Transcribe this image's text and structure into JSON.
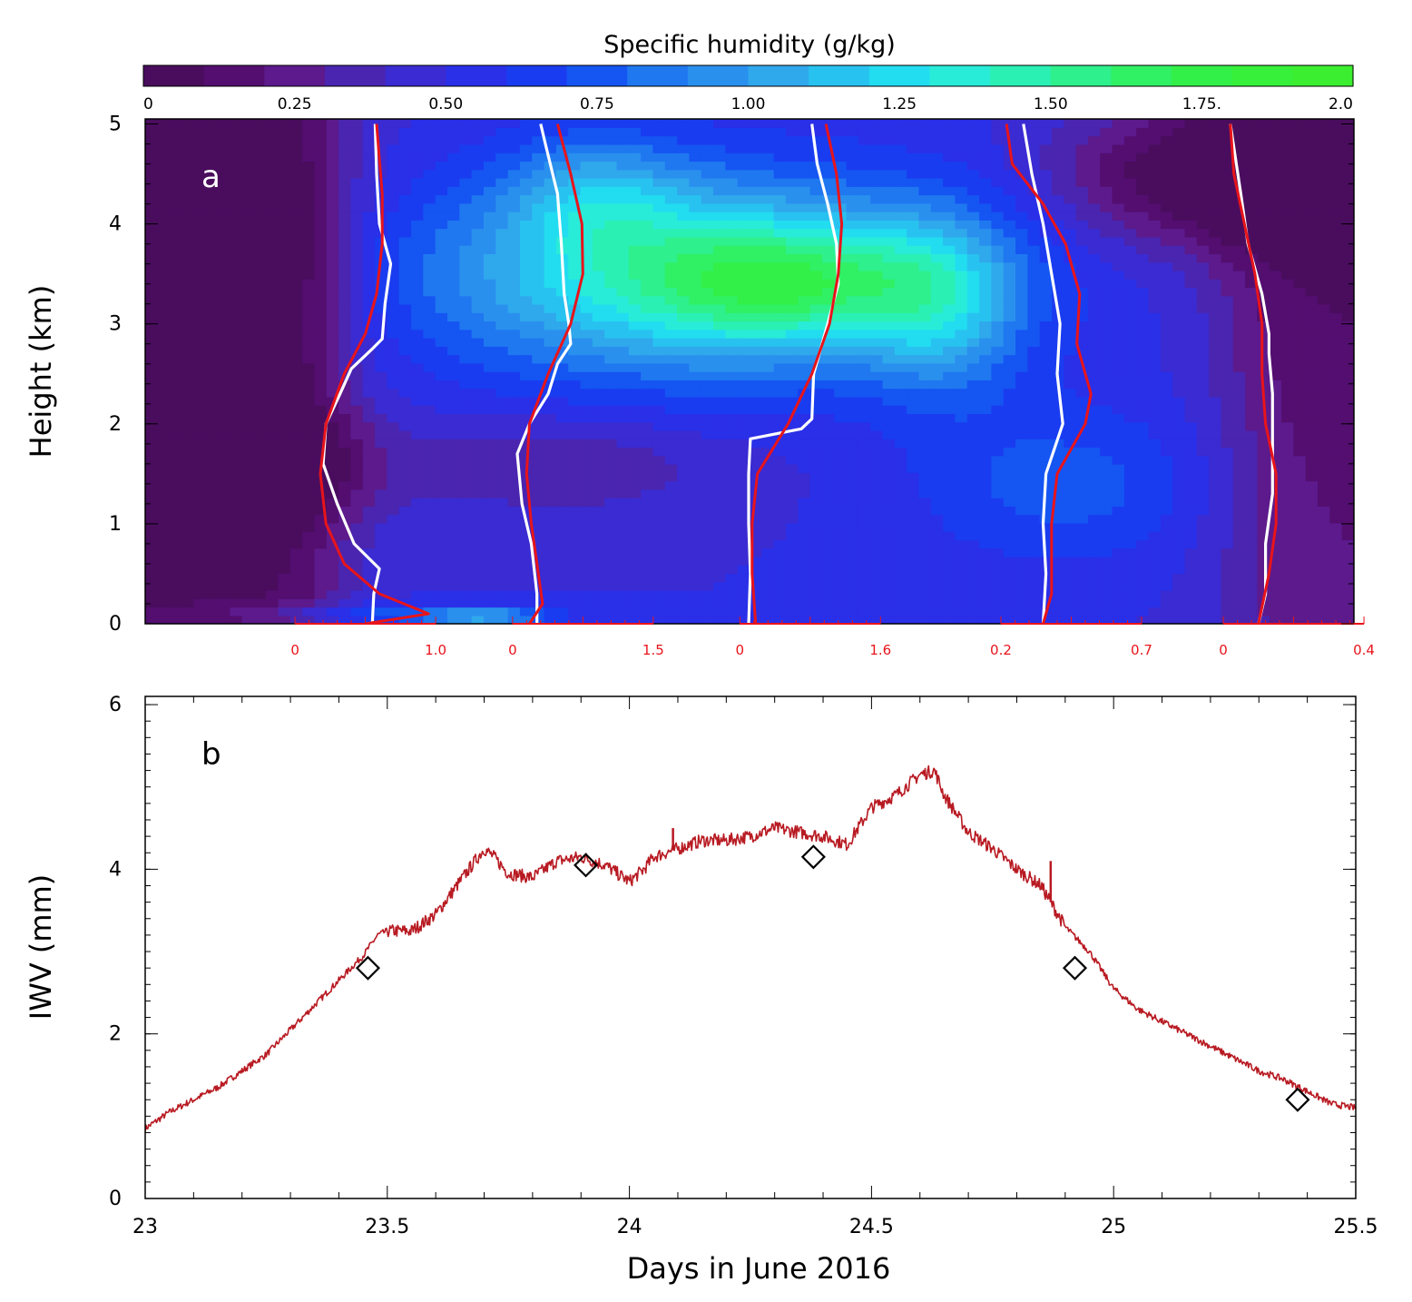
{
  "chart_data": [
    {
      "panel_label": "a",
      "type": "heatmap",
      "colorbar": {
        "title": "Specific humidity (g/kg)",
        "tick_labels": [
          "0",
          "0.25",
          "0.50",
          "0.75",
          "1.00",
          "1.25",
          "1.50",
          "1.75.",
          "2.0"
        ],
        "tick_values": [
          0,
          0.25,
          0.5,
          0.75,
          1.0,
          1.25,
          1.5,
          1.75,
          2.0
        ],
        "levels": [
          0,
          0.1,
          0.2,
          0.3,
          0.4,
          0.5,
          0.6,
          0.7,
          0.8,
          0.9,
          1.0,
          1.1,
          1.2,
          1.3,
          1.4,
          1.5,
          1.6,
          1.7,
          1.8,
          1.9,
          2.0
        ],
        "colors": [
          "#4a0d5e",
          "#530e70",
          "#5c1a8c",
          "#4a25b0",
          "#3a2bd2",
          "#2a2fe8",
          "#1a3cf0",
          "#1555f2",
          "#1f78f0",
          "#2a90ee",
          "#2fa8ec",
          "#28c2f0",
          "#22dcf0",
          "#28ecd8",
          "#2af0b4",
          "#2ef08c",
          "#30f064",
          "#32f048",
          "#36f03a",
          "#3cee30"
        ]
      },
      "ylabel": "Height (km)",
      "y_ticks": [
        0,
        1,
        2,
        3,
        4,
        5
      ],
      "ylim": [
        0,
        5.05
      ],
      "xlim": [
        23,
        25.5
      ],
      "grid": {
        "x": [
          23.0,
          23.1,
          23.2,
          23.3,
          23.4,
          23.5,
          23.6,
          23.7,
          23.8,
          23.9,
          24.0,
          24.1,
          24.2,
          24.3,
          24.4,
          24.5,
          24.6,
          24.7,
          24.8,
          24.9,
          25.0,
          25.1,
          25.2,
          25.3,
          25.4,
          25.5
        ],
        "y": [
          0,
          0.25,
          0.5,
          0.75,
          1.0,
          1.25,
          1.5,
          1.75,
          2.0,
          2.25,
          2.5,
          2.75,
          3.0,
          3.25,
          3.5,
          3.75,
          4.0,
          4.25,
          4.5,
          4.75,
          5.0
        ]
      },
      "profiles": [
        {
          "launch_day": 23.46,
          "xlim_labels": [
            "0",
            "1.0"
          ],
          "scale_max": 1.0,
          "sonde_white": [
            [
              0,
              0.55
            ],
            [
              0.3,
              0.56
            ],
            [
              0.55,
              0.6
            ],
            [
              0.8,
              0.42
            ],
            [
              1.2,
              0.3
            ],
            [
              1.6,
              0.2
            ],
            [
              2.0,
              0.22
            ],
            [
              2.3,
              0.32
            ],
            [
              2.55,
              0.4
            ],
            [
              2.75,
              0.55
            ],
            [
              2.85,
              0.62
            ],
            [
              3.2,
              0.64
            ],
            [
              3.6,
              0.68
            ],
            [
              4.0,
              0.6
            ],
            [
              4.5,
              0.58
            ],
            [
              5.0,
              0.57
            ]
          ],
          "model_red": [
            [
              0,
              0.5
            ],
            [
              0.1,
              0.95
            ],
            [
              0.3,
              0.6
            ],
            [
              0.6,
              0.35
            ],
            [
              1.0,
              0.22
            ],
            [
              1.5,
              0.18
            ],
            [
              2.0,
              0.22
            ],
            [
              2.5,
              0.35
            ],
            [
              2.9,
              0.5
            ],
            [
              3.3,
              0.58
            ],
            [
              3.8,
              0.62
            ],
            [
              4.3,
              0.62
            ],
            [
              5.0,
              0.58
            ]
          ]
        },
        {
          "launch_day": 23.91,
          "xlim_labels": [
            "0",
            "1.5"
          ],
          "scale_max": 1.5,
          "sonde_white": [
            [
              0,
              0.26
            ],
            [
              0.3,
              0.26
            ],
            [
              0.8,
              0.2
            ],
            [
              1.2,
              0.1
            ],
            [
              1.7,
              0.05
            ],
            [
              2.0,
              0.18
            ],
            [
              2.3,
              0.38
            ],
            [
              2.6,
              0.48
            ],
            [
              2.8,
              0.62
            ],
            [
              3.0,
              0.6
            ],
            [
              3.3,
              0.55
            ],
            [
              3.8,
              0.52
            ],
            [
              4.3,
              0.48
            ],
            [
              4.8,
              0.35
            ],
            [
              5.0,
              0.3
            ]
          ],
          "model_red": [
            [
              0,
              0.18
            ],
            [
              0.2,
              0.32
            ],
            [
              0.6,
              0.26
            ],
            [
              1.0,
              0.2
            ],
            [
              1.5,
              0.15
            ],
            [
              2.0,
              0.18
            ],
            [
              2.5,
              0.38
            ],
            [
              3.0,
              0.62
            ],
            [
              3.5,
              0.75
            ],
            [
              4.0,
              0.74
            ],
            [
              4.5,
              0.62
            ],
            [
              5.0,
              0.48
            ]
          ]
        },
        {
          "launch_day": 24.38,
          "xlim_labels": [
            "0",
            "1.6"
          ],
          "scale_max": 1.6,
          "sonde_white": [
            [
              0,
              0.1
            ],
            [
              0.5,
              0.12
            ],
            [
              1.0,
              0.1
            ],
            [
              1.5,
              0.1
            ],
            [
              1.85,
              0.12
            ],
            [
              1.95,
              0.7
            ],
            [
              2.05,
              0.82
            ],
            [
              2.5,
              0.84
            ],
            [
              3.0,
              1.0
            ],
            [
              3.4,
              1.12
            ],
            [
              3.8,
              1.1
            ],
            [
              4.2,
              1.0
            ],
            [
              4.6,
              0.88
            ],
            [
              5.0,
              0.82
            ]
          ],
          "model_red": [
            [
              0,
              0.18
            ],
            [
              0.5,
              0.14
            ],
            [
              1.0,
              0.14
            ],
            [
              1.5,
              0.2
            ],
            [
              2.0,
              0.55
            ],
            [
              2.5,
              0.82
            ],
            [
              3.0,
              1.02
            ],
            [
              3.5,
              1.12
            ],
            [
              4.0,
              1.16
            ],
            [
              4.5,
              1.1
            ],
            [
              5.0,
              0.98
            ]
          ]
        },
        {
          "launch_day": 24.92,
          "xlim_labels": [
            "0.2",
            "0.7"
          ],
          "scale_max": 0.7,
          "scale_min": 0.2,
          "sonde_white": [
            [
              0,
              0.35
            ],
            [
              0.5,
              0.36
            ],
            [
              1.0,
              0.35
            ],
            [
              1.5,
              0.36
            ],
            [
              2.0,
              0.42
            ],
            [
              2.5,
              0.4
            ],
            [
              3.0,
              0.41
            ],
            [
              3.5,
              0.38
            ],
            [
              4.0,
              0.35
            ],
            [
              4.5,
              0.31
            ],
            [
              5.0,
              0.28
            ]
          ],
          "model_red": [
            [
              0,
              0.35
            ],
            [
              0.3,
              0.38
            ],
            [
              1.0,
              0.38
            ],
            [
              1.5,
              0.4
            ],
            [
              2.0,
              0.5
            ],
            [
              2.3,
              0.52
            ],
            [
              2.8,
              0.47
            ],
            [
              3.3,
              0.48
            ],
            [
              3.8,
              0.43
            ],
            [
              4.2,
              0.35
            ],
            [
              4.6,
              0.24
            ],
            [
              5.0,
              0.22
            ]
          ]
        },
        {
          "launch_day": 25.38,
          "xlim_labels": [
            "0",
            "0.4"
          ],
          "scale_max": 0.4,
          "sonde_white": [
            [
              0,
              0.1
            ],
            [
              0.3,
              0.12
            ],
            [
              0.8,
              0.12
            ],
            [
              1.3,
              0.14
            ],
            [
              1.8,
              0.14
            ],
            [
              2.3,
              0.14
            ],
            [
              2.7,
              0.13
            ],
            [
              2.9,
              0.13
            ],
            [
              3.3,
              0.11
            ],
            [
              3.8,
              0.07
            ],
            [
              4.3,
              0.05
            ],
            [
              5.0,
              0.02
            ]
          ],
          "model_red": [
            [
              0,
              0.1
            ],
            [
              0.5,
              0.13
            ],
            [
              1.0,
              0.15
            ],
            [
              1.5,
              0.15
            ],
            [
              2.0,
              0.12
            ],
            [
              2.5,
              0.11
            ],
            [
              3.0,
              0.11
            ],
            [
              3.5,
              0.09
            ],
            [
              4.0,
              0.06
            ],
            [
              4.5,
              0.03
            ],
            [
              5.0,
              0.02
            ]
          ]
        }
      ]
    },
    {
      "panel_label": "b",
      "type": "line",
      "xlabel": "Days in June 2016",
      "ylabel": "IWV (mm)",
      "xlim": [
        23,
        25.5
      ],
      "ylim": [
        0,
        6.1
      ],
      "x_ticks": [
        23,
        23.5,
        24,
        24.5,
        25,
        25.5
      ],
      "x_tick_labels": [
        "23",
        "23.5",
        "24",
        "24.5",
        "25",
        "25.5"
      ],
      "y_ticks": [
        0,
        2,
        4,
        6
      ],
      "series": [
        {
          "color": "#b81a22",
          "x": [
            23.0,
            23.05,
            23.1,
            23.15,
            23.2,
            23.25,
            23.3,
            23.35,
            23.4,
            23.45,
            23.48,
            23.5,
            23.55,
            23.6,
            23.65,
            23.7,
            23.72,
            23.75,
            23.8,
            23.85,
            23.9,
            23.95,
            24.0,
            24.03,
            24.05,
            24.1,
            24.15,
            24.2,
            24.25,
            24.3,
            24.35,
            24.4,
            24.45,
            24.5,
            24.55,
            24.6,
            24.63,
            24.65,
            24.7,
            24.75,
            24.8,
            24.85,
            24.9,
            24.95,
            25.0,
            25.05,
            25.1,
            25.15,
            25.2,
            25.25,
            25.3,
            25.35,
            25.4,
            25.45,
            25.5
          ],
          "y": [
            0.85,
            1.05,
            1.2,
            1.35,
            1.55,
            1.75,
            2.05,
            2.35,
            2.65,
            2.95,
            3.2,
            3.25,
            3.25,
            3.45,
            3.85,
            4.25,
            4.15,
            3.95,
            3.9,
            4.1,
            4.15,
            4.05,
            3.85,
            4.0,
            4.15,
            4.25,
            4.35,
            4.35,
            4.4,
            4.5,
            4.45,
            4.4,
            4.3,
            4.75,
            4.9,
            5.15,
            5.2,
            4.9,
            4.45,
            4.25,
            4.0,
            3.8,
            3.3,
            3.0,
            2.55,
            2.3,
            2.15,
            2.0,
            1.85,
            1.7,
            1.55,
            1.45,
            1.3,
            1.15,
            1.1
          ]
        }
      ],
      "markers": {
        "shape": "diamond",
        "x": [
          23.46,
          23.91,
          24.38,
          24.92,
          25.38
        ],
        "y": [
          2.8,
          4.05,
          4.15,
          2.8,
          1.2
        ]
      }
    }
  ]
}
